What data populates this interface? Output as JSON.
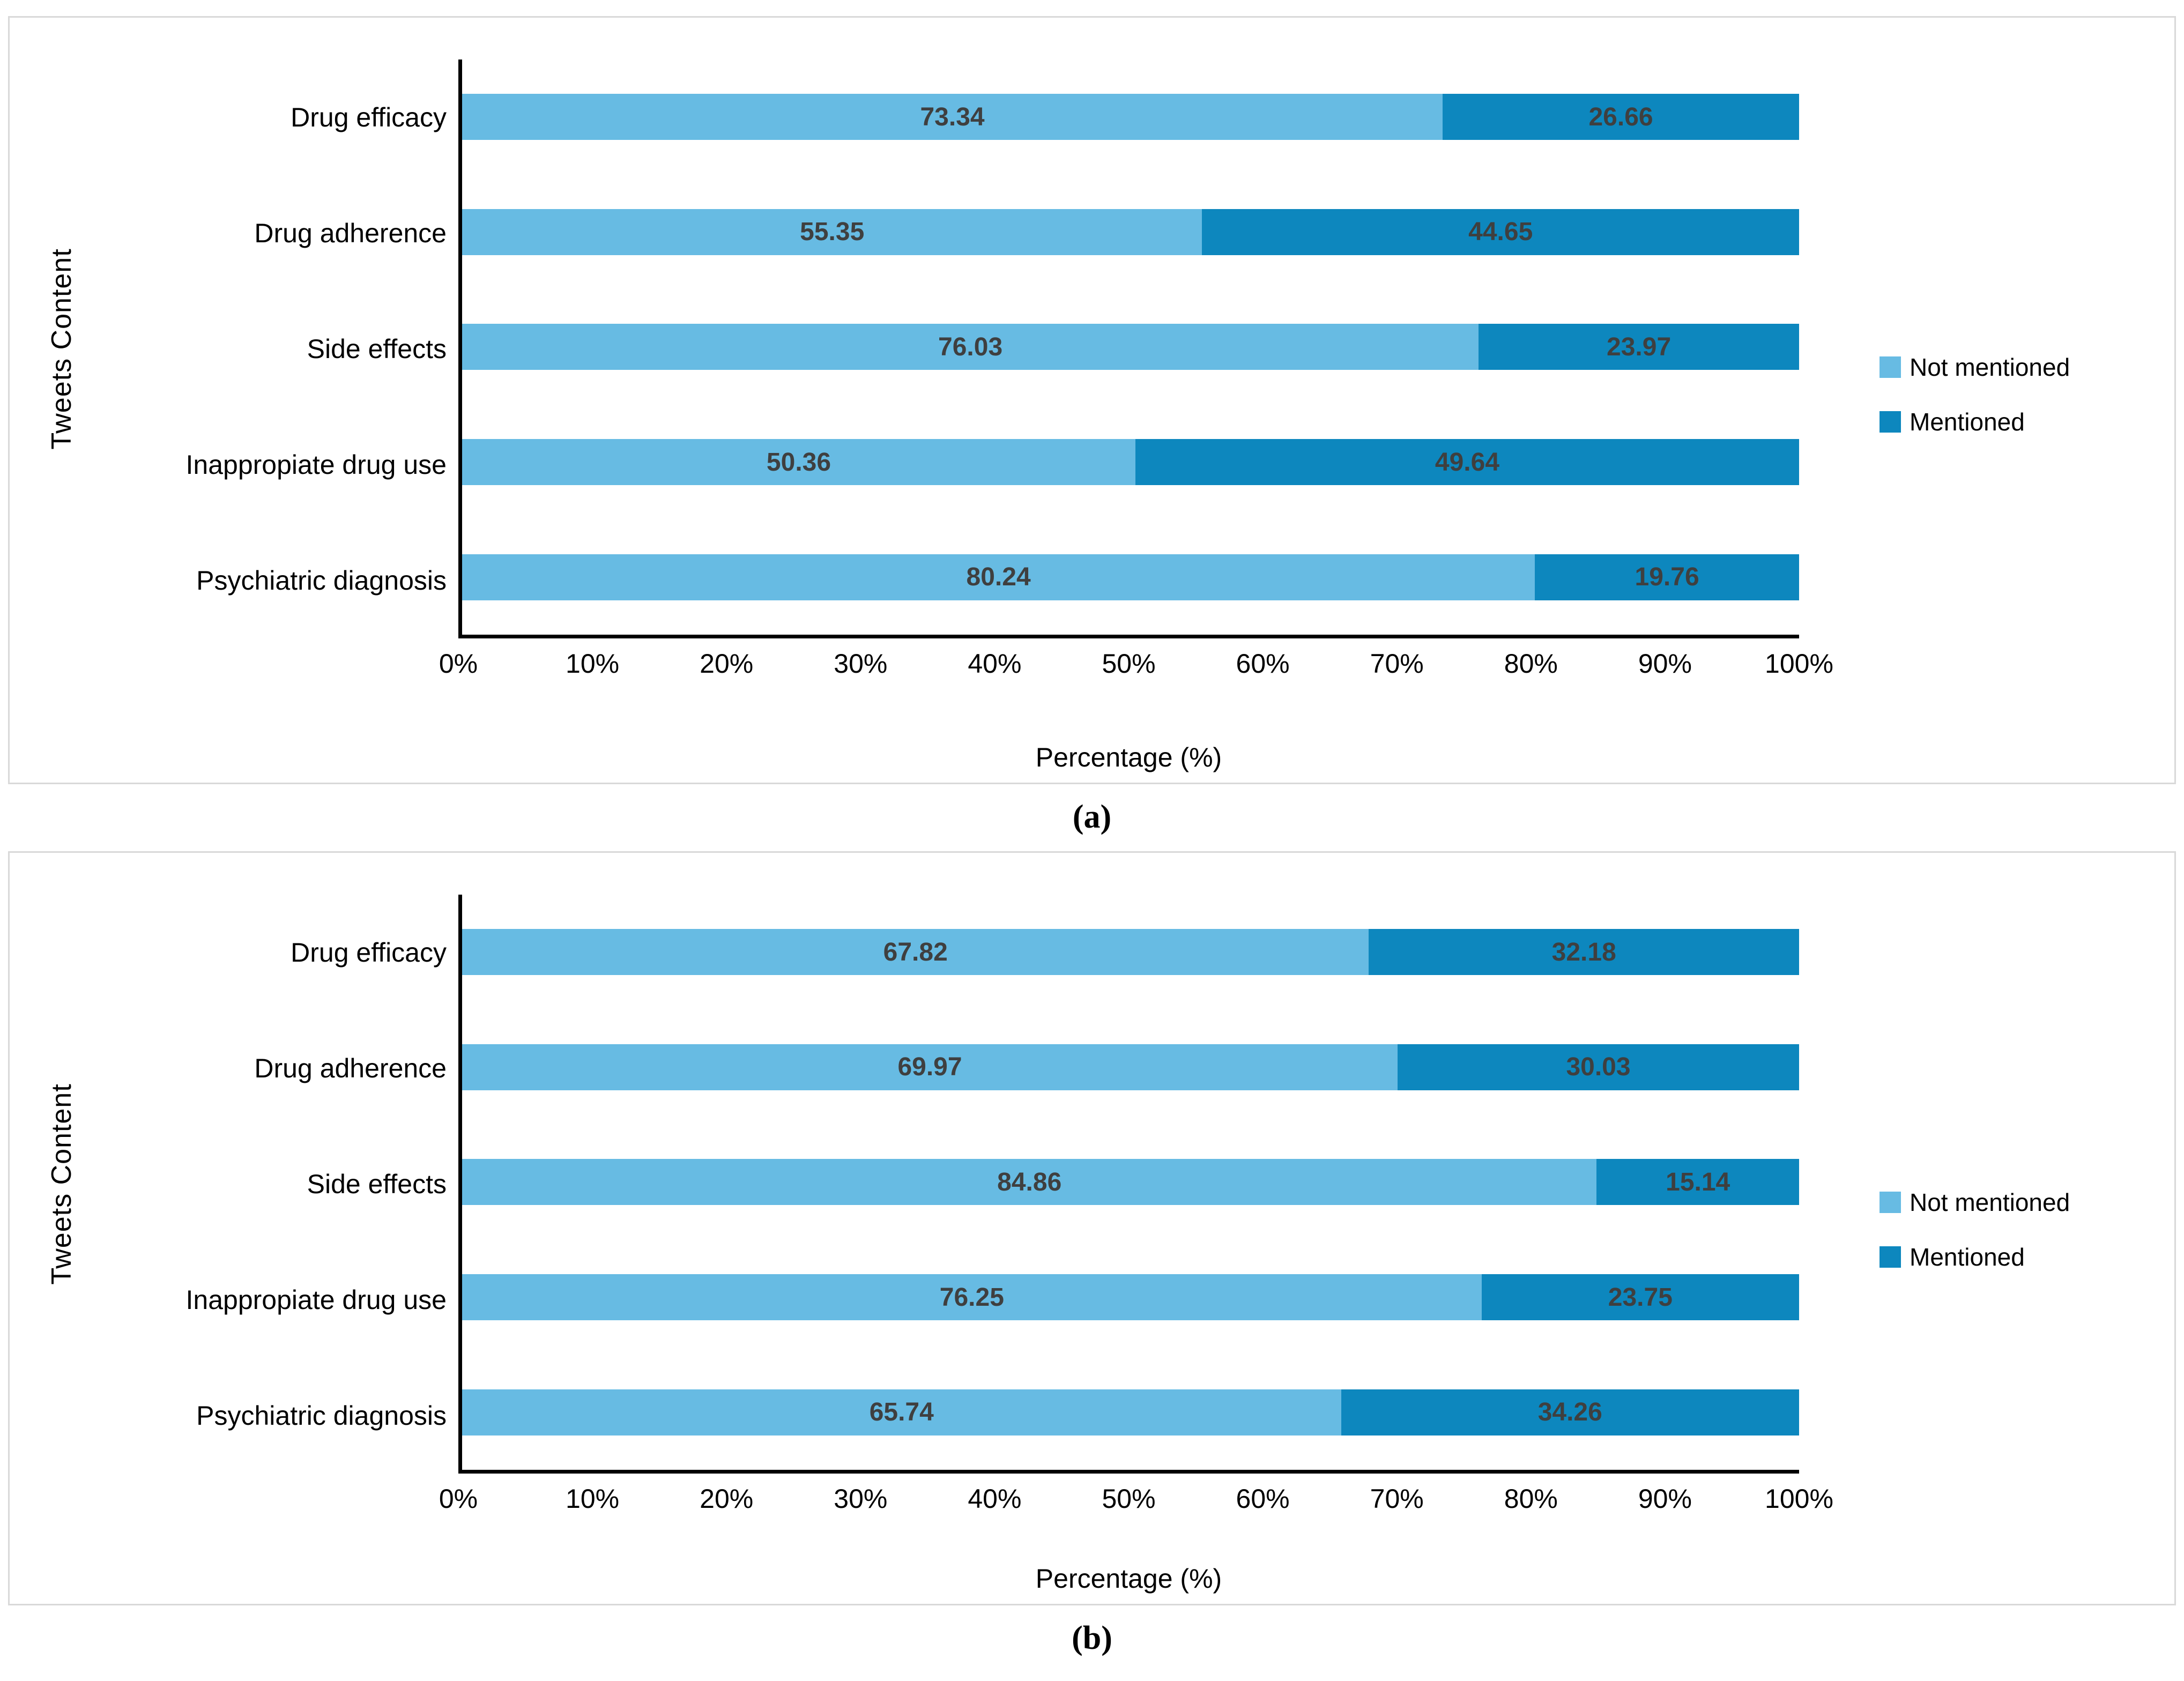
{
  "colors": {
    "not_mentioned": "#67BBE3",
    "mentioned": "#0D87BE",
    "value_label": "#3F3F3F",
    "axis": "#000000",
    "panel_border": "#D9D9D9"
  },
  "chart_data": [
    {
      "type": "bar",
      "orientation": "horizontal",
      "stacked": true,
      "caption": "(a)",
      "ylabel": "Tweets Content",
      "xlabel": "Percentage (%)",
      "xlim": [
        0,
        100
      ],
      "x_ticks": [
        "0%",
        "10%",
        "20%",
        "30%",
        "40%",
        "50%",
        "60%",
        "70%",
        "80%",
        "90%",
        "100%"
      ],
      "legend_position": "right",
      "categories": [
        "Drug efficacy",
        "Drug adherence",
        "Side effects",
        "Inappropiate drug use",
        "Psychiatric diagnosis"
      ],
      "series": [
        {
          "name": "Not mentioned",
          "color": "#67BBE3",
          "values": [
            73.34,
            55.35,
            76.03,
            50.36,
            80.24
          ]
        },
        {
          "name": "Mentioned",
          "color": "#0D87BE",
          "values": [
            26.66,
            44.65,
            23.97,
            49.64,
            19.76
          ]
        }
      ]
    },
    {
      "type": "bar",
      "orientation": "horizontal",
      "stacked": true,
      "caption": "(b)",
      "ylabel": "Tweets Content",
      "xlabel": "Percentage (%)",
      "xlim": [
        0,
        100
      ],
      "x_ticks": [
        "0%",
        "10%",
        "20%",
        "30%",
        "40%",
        "50%",
        "60%",
        "70%",
        "80%",
        "90%",
        "100%"
      ],
      "legend_position": "right",
      "categories": [
        "Drug efficacy",
        "Drug adherence",
        "Side effects",
        "Inappropiate drug use",
        "Psychiatric diagnosis"
      ],
      "series": [
        {
          "name": "Not mentioned",
          "color": "#67BBE3",
          "values": [
            67.82,
            69.97,
            84.86,
            76.25,
            65.74
          ]
        },
        {
          "name": "Mentioned",
          "color": "#0D87BE",
          "values": [
            32.18,
            30.03,
            15.14,
            23.75,
            34.26
          ]
        }
      ]
    }
  ]
}
